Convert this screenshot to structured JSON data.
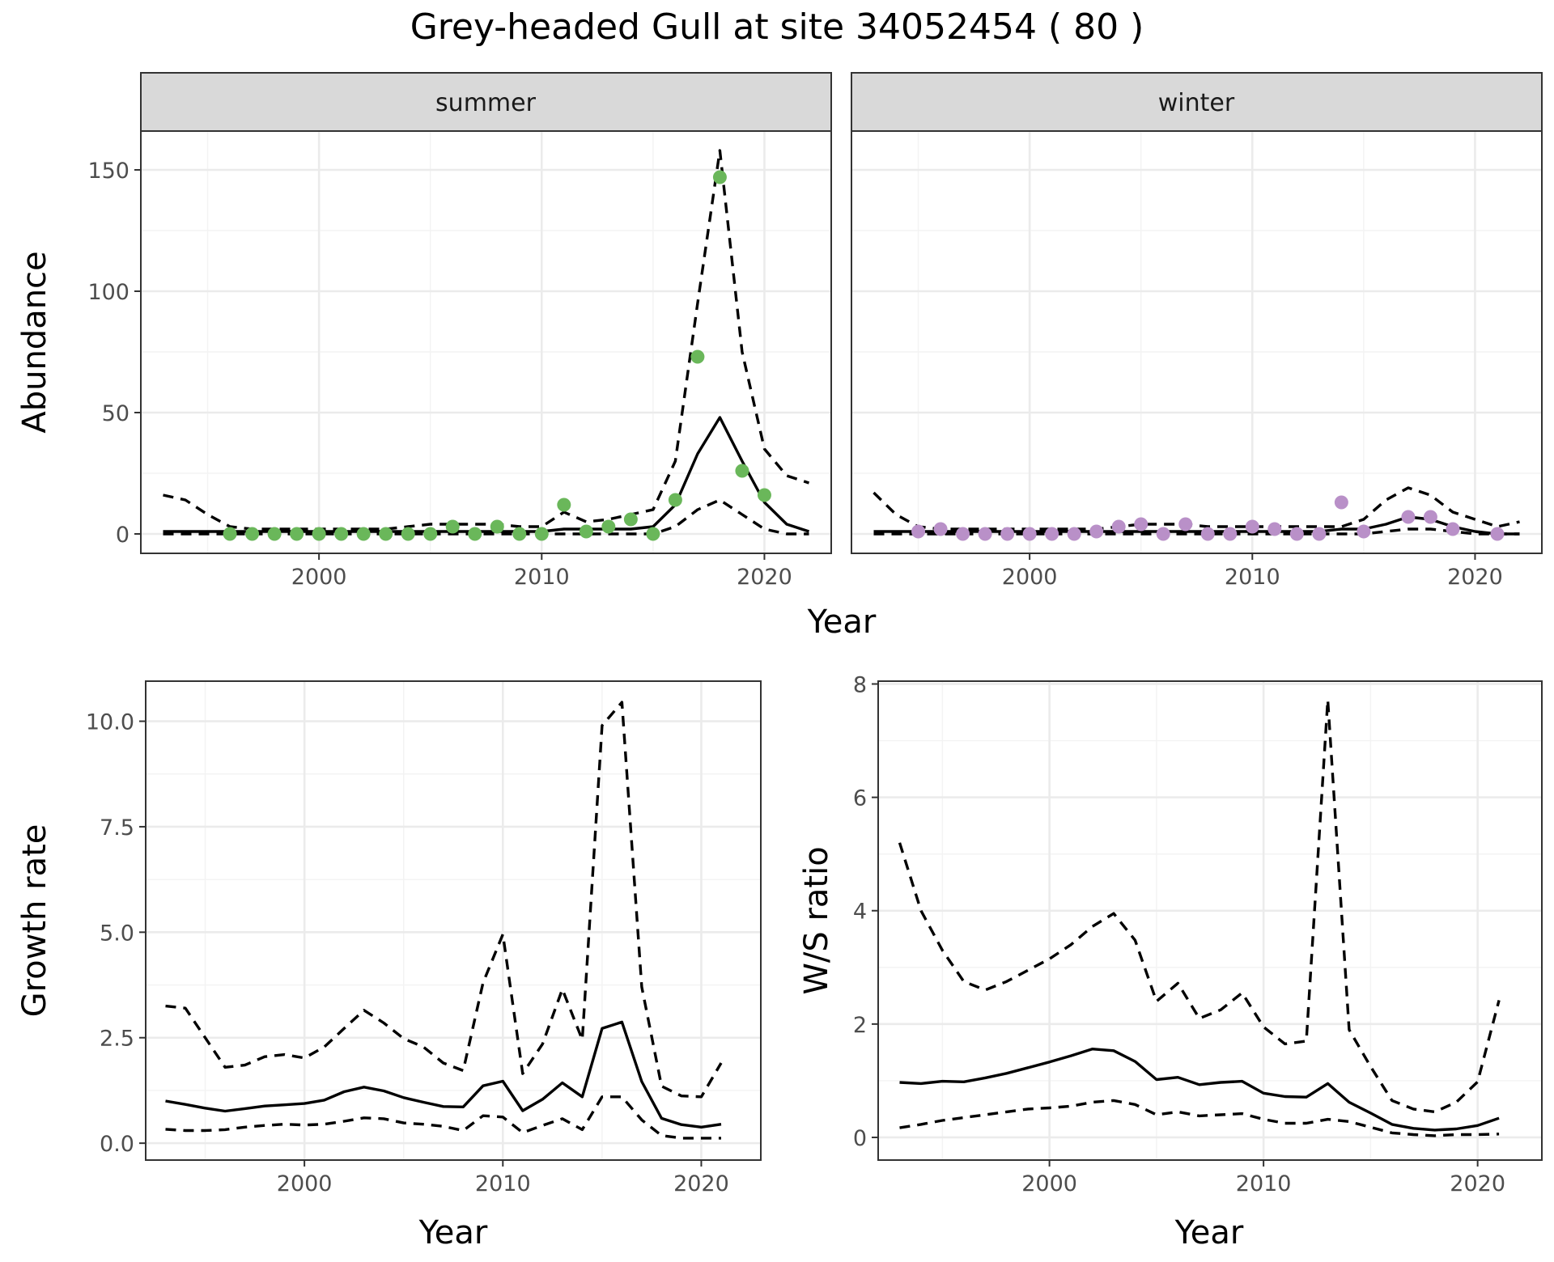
{
  "figure": {
    "title": "Grey-headed Gull at site 34052454 ( 80 )"
  },
  "chart_data": [
    {
      "type": "line",
      "name": "abundance-summer",
      "facet_label": "summer",
      "xlabel": "Year",
      "ylabel": "Abundance",
      "xlim": [
        1992,
        2023
      ],
      "ylim": [
        -8,
        166
      ],
      "xticks": [
        2000,
        2010,
        2020
      ],
      "yticks": [
        0,
        50,
        100,
        150
      ],
      "x": [
        1993,
        1994,
        1995,
        1996,
        1997,
        1998,
        1999,
        2000,
        2001,
        2002,
        2003,
        2004,
        2005,
        2006,
        2007,
        2008,
        2009,
        2010,
        2011,
        2012,
        2013,
        2014,
        2015,
        2016,
        2017,
        2018,
        2019,
        2020,
        2021,
        2022
      ],
      "series": [
        {
          "name": "mean",
          "style": "solid",
          "values": [
            1,
            1,
            1,
            1,
            1,
            1,
            1,
            1,
            1,
            1,
            1,
            1,
            1,
            1,
            1,
            1,
            1,
            1,
            2,
            2,
            2,
            2,
            3,
            12,
            33,
            48,
            30,
            13,
            4,
            1
          ]
        },
        {
          "name": "upper",
          "style": "dashed",
          "values": [
            16,
            14,
            8,
            3,
            2,
            2,
            2,
            2,
            2,
            2,
            2,
            3,
            4,
            4,
            4,
            4,
            3,
            3,
            9,
            5,
            6,
            8,
            10,
            30,
            95,
            158,
            75,
            35,
            24,
            21
          ]
        },
        {
          "name": "lower",
          "style": "dashed",
          "values": [
            0,
            0,
            0,
            0,
            0,
            0,
            0,
            0,
            0,
            0,
            0,
            0,
            0,
            0,
            0,
            0,
            0,
            0,
            0,
            0,
            0,
            0,
            0,
            3,
            10,
            14,
            8,
            2,
            0,
            0
          ]
        }
      ],
      "points": {
        "color": "#6ab75a",
        "x": [
          1996,
          1997,
          1998,
          1999,
          2000,
          2001,
          2002,
          2003,
          2004,
          2005,
          2006,
          2007,
          2008,
          2009,
          2010,
          2011,
          2012,
          2013,
          2014,
          2015,
          2016,
          2017,
          2018,
          2019,
          2020
        ],
        "y": [
          0,
          0,
          0,
          0,
          0,
          0,
          0,
          0,
          0,
          0,
          3,
          0,
          3,
          0,
          0,
          12,
          1,
          3,
          6,
          0,
          14,
          73,
          147,
          26,
          16
        ]
      }
    },
    {
      "type": "line",
      "name": "abundance-winter",
      "facet_label": "winter",
      "xlabel": "Year",
      "ylabel": "Abundance",
      "xlim": [
        1992,
        2023
      ],
      "ylim": [
        -8,
        166
      ],
      "xticks": [
        2000,
        2010,
        2020
      ],
      "yticks": [
        0,
        50,
        100,
        150
      ],
      "x": [
        1993,
        1994,
        1995,
        1996,
        1997,
        1998,
        1999,
        2000,
        2001,
        2002,
        2003,
        2004,
        2005,
        2006,
        2007,
        2008,
        2009,
        2010,
        2011,
        2012,
        2013,
        2014,
        2015,
        2016,
        2017,
        2018,
        2019,
        2020,
        2021,
        2022
      ],
      "series": [
        {
          "name": "mean",
          "style": "solid",
          "values": [
            1,
            1,
            1,
            1,
            1,
            1,
            1,
            1,
            1,
            1,
            1,
            1,
            1,
            1,
            1,
            1,
            1,
            1,
            1,
            1,
            1,
            2,
            2,
            4,
            7,
            6,
            3,
            1,
            0,
            0
          ]
        },
        {
          "name": "upper",
          "style": "dashed",
          "values": [
            17,
            8,
            3,
            2,
            2,
            2,
            2,
            2,
            2,
            2,
            2,
            3,
            4,
            4,
            4,
            3,
            3,
            3,
            3,
            3,
            3,
            3,
            6,
            14,
            19,
            16,
            9,
            6,
            3,
            5
          ]
        },
        {
          "name": "lower",
          "style": "dashed",
          "values": [
            0,
            0,
            0,
            0,
            0,
            0,
            0,
            0,
            0,
            0,
            0,
            0,
            0,
            0,
            0,
            0,
            0,
            0,
            0,
            0,
            0,
            0,
            0,
            1,
            2,
            2,
            1,
            0,
            0,
            0
          ]
        }
      ],
      "points": {
        "color": "#b990c8",
        "x": [
          1995,
          1996,
          1997,
          1998,
          1999,
          2000,
          2001,
          2002,
          2003,
          2004,
          2005,
          2006,
          2007,
          2008,
          2009,
          2010,
          2011,
          2012,
          2013,
          2014,
          2015,
          2017,
          2018,
          2019,
          2021
        ],
        "y": [
          1,
          2,
          0,
          0,
          0,
          0,
          0,
          0,
          1,
          3,
          4,
          0,
          4,
          0,
          0,
          3,
          2,
          0,
          0,
          13,
          1,
          7,
          7,
          2,
          0
        ]
      }
    },
    {
      "type": "line",
      "name": "growth-rate",
      "xlabel": "Year",
      "ylabel": "Growth rate",
      "xlim": [
        1992,
        2023
      ],
      "ylim": [
        -0.4,
        10.95
      ],
      "xticks": [
        2000,
        2010,
        2020
      ],
      "yticks": [
        0.0,
        2.5,
        5.0,
        7.5,
        10.0
      ],
      "ytick_labels": [
        "0.0",
        "2.5",
        "5.0",
        "7.5",
        "10.0"
      ],
      "x": [
        1993,
        1994,
        1995,
        1996,
        1997,
        1998,
        1999,
        2000,
        2001,
        2002,
        2003,
        2004,
        2005,
        2006,
        2007,
        2008,
        2009,
        2010,
        2011,
        2012,
        2013,
        2014,
        2015,
        2016,
        2017,
        2018,
        2019,
        2020,
        2021
      ],
      "series": [
        {
          "name": "mean",
          "style": "solid",
          "values": [
            1.0,
            0.92,
            0.83,
            0.76,
            0.82,
            0.88,
            0.91,
            0.94,
            1.02,
            1.22,
            1.33,
            1.24,
            1.08,
            0.97,
            0.87,
            0.86,
            1.36,
            1.47,
            0.77,
            1.04,
            1.43,
            1.1,
            2.72,
            2.87,
            1.46,
            0.59,
            0.44,
            0.38,
            0.45
          ]
        },
        {
          "name": "upper",
          "style": "dashed",
          "values": [
            3.25,
            3.2,
            2.5,
            1.8,
            1.85,
            2.05,
            2.1,
            2.02,
            2.28,
            2.72,
            3.15,
            2.85,
            2.48,
            2.28,
            1.9,
            1.72,
            3.8,
            4.95,
            1.65,
            2.35,
            3.65,
            2.45,
            9.9,
            10.45,
            3.7,
            1.35,
            1.12,
            1.1,
            1.9
          ]
        },
        {
          "name": "lower",
          "style": "dashed",
          "values": [
            0.33,
            0.3,
            0.3,
            0.32,
            0.38,
            0.42,
            0.45,
            0.43,
            0.45,
            0.52,
            0.6,
            0.58,
            0.48,
            0.45,
            0.4,
            0.3,
            0.65,
            0.62,
            0.25,
            0.42,
            0.58,
            0.32,
            1.1,
            1.1,
            0.55,
            0.18,
            0.12,
            0.12,
            0.12
          ]
        }
      ]
    },
    {
      "type": "line",
      "name": "ws-ratio",
      "xlabel": "Year",
      "ylabel": "W/S ratio",
      "xlim": [
        1992,
        2023
      ],
      "ylim": [
        -0.4,
        8.05
      ],
      "xticks": [
        2000,
        2010,
        2020
      ],
      "yticks": [
        0,
        2,
        4,
        6,
        8
      ],
      "x": [
        1993,
        1994,
        1995,
        1996,
        1997,
        1998,
        1999,
        2000,
        2001,
        2002,
        2003,
        2004,
        2005,
        2006,
        2007,
        2008,
        2009,
        2010,
        2011,
        2012,
        2013,
        2014,
        2015,
        2016,
        2017,
        2018,
        2019,
        2020,
        2021
      ],
      "series": [
        {
          "name": "mean",
          "style": "solid",
          "values": [
            0.97,
            0.95,
            0.99,
            0.98,
            1.05,
            1.13,
            1.23,
            1.33,
            1.44,
            1.56,
            1.53,
            1.34,
            1.02,
            1.06,
            0.93,
            0.97,
            0.99,
            0.78,
            0.72,
            0.71,
            0.95,
            0.62,
            0.43,
            0.23,
            0.16,
            0.13,
            0.15,
            0.21,
            0.34
          ]
        },
        {
          "name": "upper",
          "style": "dashed",
          "values": [
            5.2,
            4.0,
            3.3,
            2.75,
            2.6,
            2.75,
            2.95,
            3.15,
            3.4,
            3.72,
            3.95,
            3.48,
            2.4,
            2.72,
            2.1,
            2.25,
            2.55,
            1.95,
            1.65,
            1.7,
            7.72,
            1.9,
            1.25,
            0.65,
            0.5,
            0.45,
            0.62,
            0.98,
            2.42
          ]
        },
        {
          "name": "lower",
          "style": "dashed",
          "values": [
            0.17,
            0.23,
            0.3,
            0.35,
            0.4,
            0.45,
            0.5,
            0.52,
            0.55,
            0.62,
            0.65,
            0.58,
            0.4,
            0.45,
            0.38,
            0.4,
            0.42,
            0.32,
            0.25,
            0.25,
            0.32,
            0.28,
            0.18,
            0.08,
            0.05,
            0.03,
            0.05,
            0.05,
            0.06
          ]
        }
      ]
    }
  ]
}
